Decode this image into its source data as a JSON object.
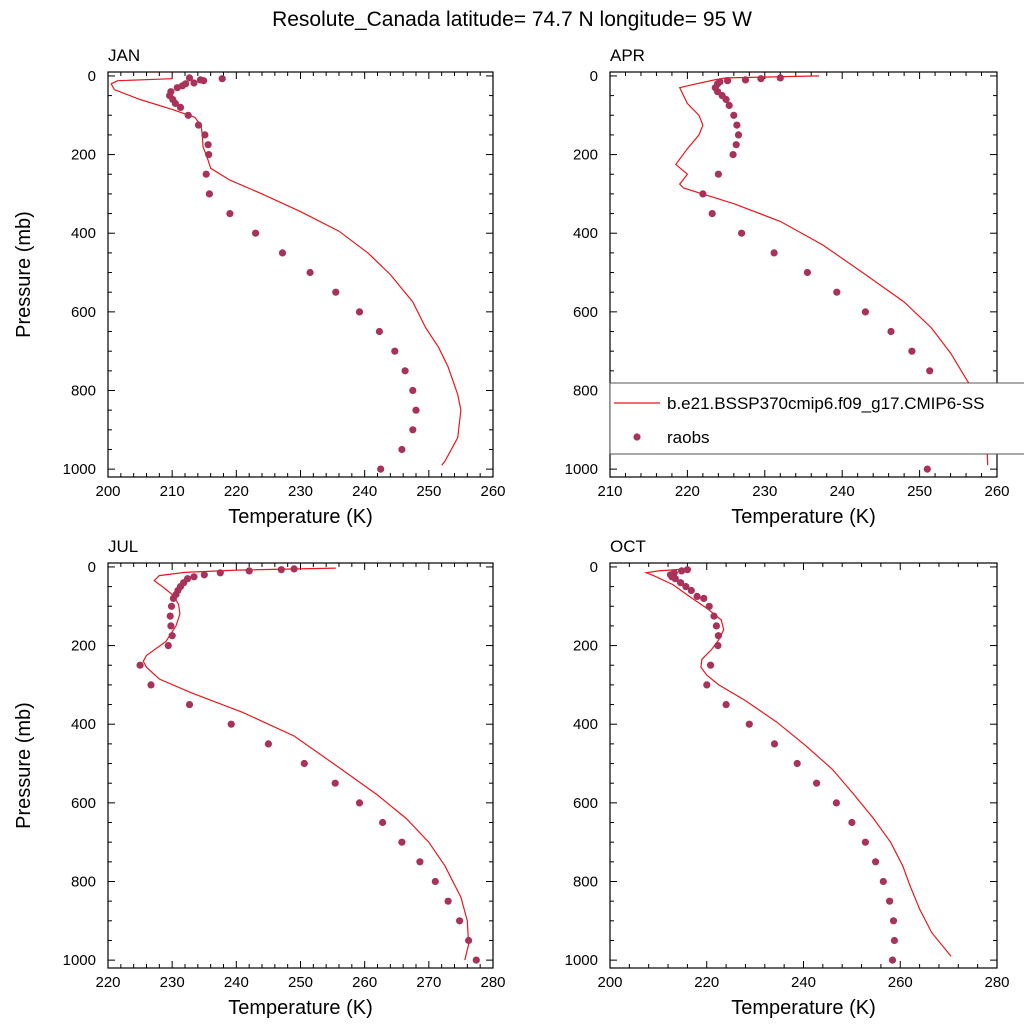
{
  "figure": {
    "title": "Resolute_Canada  latitude= 74.7 N longitude= 95 W"
  },
  "legend": {
    "model_label": "b.e21.BSSP370cmip6.f09_g17.CMIP6-SS",
    "obs_label": "raobs",
    "model_color": "#e8181e",
    "obs_color": "#a8325a"
  },
  "chart_data": [
    {
      "type": "line",
      "title": "JAN",
      "xlabel": "Temperature (K)",
      "ylabel": "Pressure (mb)",
      "xlim": [
        200,
        260
      ],
      "xticks": [
        200,
        210,
        220,
        230,
        240,
        250,
        260
      ],
      "ylim": [
        1000,
        0
      ],
      "yticks": [
        0,
        200,
        400,
        600,
        800,
        1000
      ],
      "grid": false,
      "series": [
        {
          "name": "b.e21.BSSP370cmip6.f09_g17.CMIP6-SS",
          "kind": "line",
          "points": [
            [
              210,
              7
            ],
            [
              201.5,
              12
            ],
            [
              200.5,
              20
            ],
            [
              201,
              35
            ],
            [
              205,
              60
            ],
            [
              210,
              85
            ],
            [
              213.5,
              105
            ],
            [
              214.5,
              125
            ],
            [
              214.7,
              150
            ],
            [
              214.8,
              180
            ],
            [
              215.5,
              210
            ],
            [
              216,
              235
            ],
            [
              219,
              265
            ],
            [
              224,
              300
            ],
            [
              230,
              345
            ],
            [
              236,
              395
            ],
            [
              240.5,
              450
            ],
            [
              244,
              505
            ],
            [
              247.5,
              575
            ],
            [
              249.5,
              640
            ],
            [
              251.5,
              690
            ],
            [
              253,
              740
            ],
            [
              254.5,
              810
            ],
            [
              255,
              850
            ],
            [
              254.5,
              920
            ],
            [
              252.5,
              980
            ],
            [
              252,
              990
            ]
          ]
        },
        {
          "name": "raobs",
          "kind": "scatter",
          "points": [
            [
              217.8,
              7
            ],
            [
              214.9,
              12
            ],
            [
              214.4,
              10
            ],
            [
              213.4,
              18
            ],
            [
              212.7,
              5
            ],
            [
              212.1,
              20
            ],
            [
              211.6,
              25
            ],
            [
              210.8,
              30
            ],
            [
              209.8,
              40
            ],
            [
              209.6,
              50
            ],
            [
              210.1,
              60
            ],
            [
              210.5,
              70
            ],
            [
              211.3,
              80
            ],
            [
              212.5,
              100
            ],
            [
              214.1,
              125
            ],
            [
              215.1,
              150
            ],
            [
              215.6,
              175
            ],
            [
              215.7,
              200
            ],
            [
              215.3,
              250
            ],
            [
              215.8,
              300
            ],
            [
              219.0,
              350
            ],
            [
              223.0,
              400
            ],
            [
              227.2,
              450
            ],
            [
              231.5,
              500
            ],
            [
              235.5,
              550
            ],
            [
              239.2,
              600
            ],
            [
              242.3,
              650
            ],
            [
              244.7,
              700
            ],
            [
              246.3,
              750
            ],
            [
              247.5,
              800
            ],
            [
              248.0,
              850
            ],
            [
              247.5,
              900
            ],
            [
              245.8,
              950
            ],
            [
              242.5,
              1000
            ]
          ]
        }
      ]
    },
    {
      "type": "line",
      "title": "APR",
      "xlabel": "Temperature (K)",
      "ylabel": "",
      "xlim": [
        210,
        260
      ],
      "xticks": [
        210,
        220,
        230,
        240,
        250,
        260
      ],
      "ylim": [
        1000,
        0
      ],
      "yticks": [
        0,
        200,
        400,
        600,
        800,
        1000
      ],
      "grid": false,
      "series": [
        {
          "name": "b.e21.BSSP370cmip6.f09_g17.CMIP6-SS",
          "kind": "line",
          "points": [
            [
              237,
              0
            ],
            [
              225,
              5
            ],
            [
              223.5,
              10
            ],
            [
              220,
              25
            ],
            [
              219,
              30
            ],
            [
              220,
              70
            ],
            [
              221.5,
              100
            ],
            [
              222,
              125
            ],
            [
              221.5,
              150
            ],
            [
              220,
              185
            ],
            [
              218.5,
              225
            ],
            [
              220,
              250
            ],
            [
              219,
              275
            ],
            [
              219.5,
              285
            ],
            [
              226,
              325
            ],
            [
              232,
              370
            ],
            [
              237.5,
              430
            ],
            [
              243,
              505
            ],
            [
              248,
              575
            ],
            [
              251.5,
              640
            ],
            [
              254,
              705
            ],
            [
              256,
              770
            ],
            [
              258,
              830
            ],
            [
              258.5,
              880
            ],
            [
              258.7,
              940
            ],
            [
              258.8,
              990
            ]
          ]
        },
        {
          "name": "raobs",
          "kind": "scatter",
          "points": [
            [
              232.0,
              5
            ],
            [
              229.5,
              7
            ],
            [
              227.5,
              10
            ],
            [
              225.2,
              12
            ],
            [
              224.2,
              15
            ],
            [
              223.9,
              20
            ],
            [
              223.6,
              30
            ],
            [
              223.9,
              40
            ],
            [
              224.5,
              50
            ],
            [
              225.0,
              60
            ],
            [
              225.4,
              75
            ],
            [
              226.0,
              100
            ],
            [
              226.4,
              125
            ],
            [
              226.6,
              150
            ],
            [
              226.3,
              175
            ],
            [
              225.9,
              200
            ],
            [
              224.0,
              250
            ],
            [
              222.0,
              300
            ],
            [
              223.2,
              350
            ],
            [
              227.0,
              400
            ],
            [
              231.2,
              450
            ],
            [
              235.5,
              500
            ],
            [
              239.3,
              550
            ],
            [
              243.0,
              600
            ],
            [
              246.3,
              650
            ],
            [
              249.0,
              700
            ],
            [
              251.3,
              750
            ],
            [
              253.0,
              800
            ],
            [
              254.0,
              850
            ],
            [
              254.4,
              900
            ],
            [
              253.4,
              950
            ],
            [
              251.0,
              1000
            ]
          ]
        }
      ]
    },
    {
      "type": "line",
      "title": "JUL",
      "xlabel": "Temperature (K)",
      "ylabel": "Pressure (mb)",
      "xlim": [
        220,
        280
      ],
      "xticks": [
        220,
        230,
        240,
        250,
        260,
        270,
        280
      ],
      "ylim": [
        1000,
        0
      ],
      "yticks": [
        0,
        200,
        400,
        600,
        800,
        1000
      ],
      "grid": false,
      "series": [
        {
          "name": "b.e21.BSSP370cmip6.f09_g17.CMIP6-SS",
          "kind": "line",
          "points": [
            [
              255.5,
              3
            ],
            [
              240,
              8
            ],
            [
              232,
              14
            ],
            [
              228,
              22
            ],
            [
              227.2,
              35
            ],
            [
              228.5,
              50
            ],
            [
              230,
              70
            ],
            [
              231,
              95
            ],
            [
              231.2,
              120
            ],
            [
              230.6,
              150
            ],
            [
              229,
              190
            ],
            [
              226,
              225
            ],
            [
              225.5,
              240
            ],
            [
              226,
              255
            ],
            [
              228,
              285
            ],
            [
              233,
              320
            ],
            [
              241,
              370
            ],
            [
              249,
              430
            ],
            [
              256,
              510
            ],
            [
              262,
              580
            ],
            [
              266.5,
              640
            ],
            [
              270,
              700
            ],
            [
              272.5,
              760
            ],
            [
              275,
              840
            ],
            [
              276,
              900
            ],
            [
              276.2,
              960
            ],
            [
              275.6,
              1000
            ]
          ]
        },
        {
          "name": "raobs",
          "kind": "scatter",
          "points": [
            [
              249.0,
              5
            ],
            [
              247.0,
              7
            ],
            [
              242.0,
              10
            ],
            [
              237.5,
              15
            ],
            [
              235.0,
              20
            ],
            [
              233.4,
              25
            ],
            [
              232.4,
              30
            ],
            [
              231.8,
              40
            ],
            [
              231.3,
              50
            ],
            [
              230.9,
              60
            ],
            [
              230.6,
              70
            ],
            [
              230.2,
              80
            ],
            [
              229.9,
              100
            ],
            [
              229.7,
              125
            ],
            [
              229.8,
              150
            ],
            [
              230.0,
              175
            ],
            [
              229.4,
              200
            ],
            [
              225.0,
              250
            ],
            [
              226.7,
              300
            ],
            [
              232.7,
              350
            ],
            [
              239.2,
              400
            ],
            [
              245.0,
              450
            ],
            [
              250.6,
              500
            ],
            [
              255.4,
              550
            ],
            [
              259.2,
              600
            ],
            [
              262.8,
              650
            ],
            [
              265.8,
              700
            ],
            [
              268.6,
              750
            ],
            [
              271.0,
              800
            ],
            [
              273.0,
              850
            ],
            [
              274.8,
              900
            ],
            [
              276.2,
              950
            ],
            [
              277.4,
              1000
            ]
          ]
        }
      ]
    },
    {
      "type": "line",
      "title": "OCT",
      "xlabel": "Temperature (K)",
      "ylabel": "",
      "xlim": [
        200,
        280
      ],
      "xticks": [
        200,
        220,
        240,
        260,
        280
      ],
      "ylim": [
        1000,
        0
      ],
      "yticks": [
        0,
        200,
        400,
        600,
        800,
        1000
      ],
      "grid": false,
      "series": [
        {
          "name": "b.e21.BSSP370cmip6.f09_g17.CMIP6-SS",
          "kind": "line",
          "points": [
            [
              216,
              5
            ],
            [
              210,
              10
            ],
            [
              207.5,
              15
            ],
            [
              209,
              22
            ],
            [
              213,
              45
            ],
            [
              217,
              80
            ],
            [
              220,
              105
            ],
            [
              223,
              135
            ],
            [
              223.5,
              160
            ],
            [
              222.5,
              185
            ],
            [
              221,
              210
            ],
            [
              219,
              235
            ],
            [
              218.8,
              255
            ],
            [
              220,
              275
            ],
            [
              222.5,
              300
            ],
            [
              228,
              340
            ],
            [
              234.5,
              395
            ],
            [
              240.5,
              455
            ],
            [
              246,
              515
            ],
            [
              250.5,
              580
            ],
            [
              254.5,
              640
            ],
            [
              258,
              700
            ],
            [
              260.5,
              760
            ],
            [
              262,
              810
            ],
            [
              264,
              870
            ],
            [
              266.5,
              930
            ],
            [
              270.5,
              990
            ]
          ]
        },
        {
          "name": "raobs",
          "kind": "scatter",
          "points": [
            [
              216.0,
              7
            ],
            [
              214.8,
              10
            ],
            [
              213.3,
              15
            ],
            [
              212.5,
              20
            ],
            [
              212.8,
              25
            ],
            [
              213.5,
              30
            ],
            [
              214.6,
              40
            ],
            [
              215.7,
              50
            ],
            [
              216.8,
              60
            ],
            [
              218.0,
              75
            ],
            [
              219.4,
              80
            ],
            [
              220.5,
              100
            ],
            [
              221.5,
              125
            ],
            [
              222.0,
              150
            ],
            [
              222.4,
              175
            ],
            [
              222.3,
              200
            ],
            [
              220.8,
              250
            ],
            [
              220.0,
              300
            ],
            [
              224.0,
              350
            ],
            [
              228.8,
              400
            ],
            [
              234.0,
              450
            ],
            [
              238.7,
              500
            ],
            [
              242.7,
              550
            ],
            [
              246.8,
              600
            ],
            [
              250.0,
              650
            ],
            [
              252.8,
              700
            ],
            [
              254.9,
              750
            ],
            [
              256.5,
              800
            ],
            [
              257.8,
              850
            ],
            [
              258.6,
              900
            ],
            [
              258.8,
              950
            ],
            [
              258.4,
              1000
            ]
          ]
        }
      ]
    }
  ]
}
